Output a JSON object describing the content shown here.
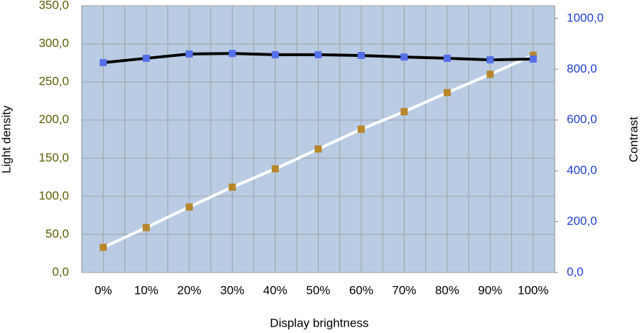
{
  "chart_data": {
    "type": "line",
    "x_label": "Display brightness",
    "y_label": "Light density",
    "y2_label": "Contrast",
    "categories": [
      "0%",
      "10%",
      "20%",
      "30%",
      "40%",
      "50%",
      "60%",
      "70%",
      "80%",
      "90%",
      "100%"
    ],
    "series": [
      {
        "name": "Light density",
        "color": "#ffffff",
        "marker_color": "#b8862b",
        "values": [
          33,
          59,
          86,
          112,
          136,
          162,
          188,
          211,
          236,
          260,
          285
        ]
      },
      {
        "name": "Contrast",
        "axis": "y2",
        "color": "#000000",
        "marker_color": "#5470e8",
        "values": [
          826,
          843,
          860,
          862,
          857,
          857,
          854,
          848,
          843,
          837,
          840
        ]
      }
    ],
    "ylim": [
      0,
      350
    ],
    "yticks": [
      {
        "value": 0,
        "label": "0,0"
      },
      {
        "value": 50,
        "label": "50,0"
      },
      {
        "value": 100,
        "label": "100,0"
      },
      {
        "value": 150,
        "label": "150,0"
      },
      {
        "value": 200,
        "label": "200,0"
      },
      {
        "value": 250,
        "label": "250,0"
      },
      {
        "value": 300,
        "label": "300,0"
      },
      {
        "value": 350,
        "label": "350,0"
      }
    ],
    "y2lim": [
      0,
      1050
    ],
    "y2ticks": [
      {
        "value": 0,
        "label": "0,0"
      },
      {
        "value": 200,
        "label": "200,0"
      },
      {
        "value": 400,
        "label": "400,0"
      },
      {
        "value": 600,
        "label": "600,0"
      },
      {
        "value": 800,
        "label": "800,0"
      },
      {
        "value": 1000,
        "label": "1000,0"
      }
    ],
    "y_tick_color": "#5c5c00",
    "y2_tick_color": "#1f3fd6",
    "plot_background": "#b9cce4",
    "grid": true
  }
}
